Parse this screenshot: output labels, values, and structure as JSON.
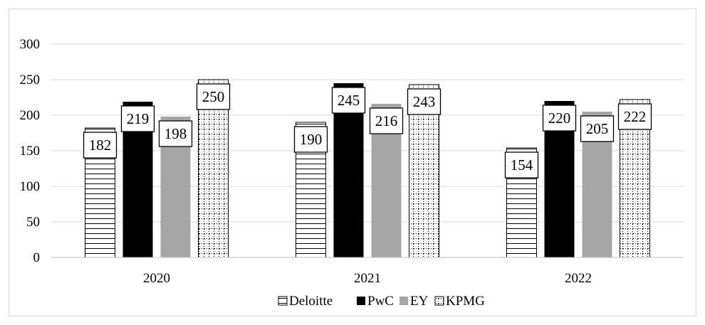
{
  "chart_data": {
    "type": "bar",
    "categories": [
      "2020",
      "2021",
      "2022"
    ],
    "series": [
      {
        "name": "Deloitte",
        "values": [
          182,
          190,
          154
        ],
        "color": "#ffffff",
        "pattern": "horizontal-stripes"
      },
      {
        "name": "PwC",
        "values": [
          219,
          245,
          220
        ],
        "color": "#000000",
        "pattern": "solid"
      },
      {
        "name": "EY",
        "values": [
          198,
          216,
          205
        ],
        "color": "#a6a6a6",
        "pattern": "solid"
      },
      {
        "name": "KPMG",
        "values": [
          250,
          243,
          222
        ],
        "color": "#ffffff",
        "pattern": "dotted-grid"
      }
    ],
    "ylim": [
      0,
      300
    ],
    "yticks": [
      0,
      50,
      100,
      150,
      200,
      250,
      300
    ],
    "grid": true,
    "legend_position": "bottom",
    "data_labels": true
  }
}
